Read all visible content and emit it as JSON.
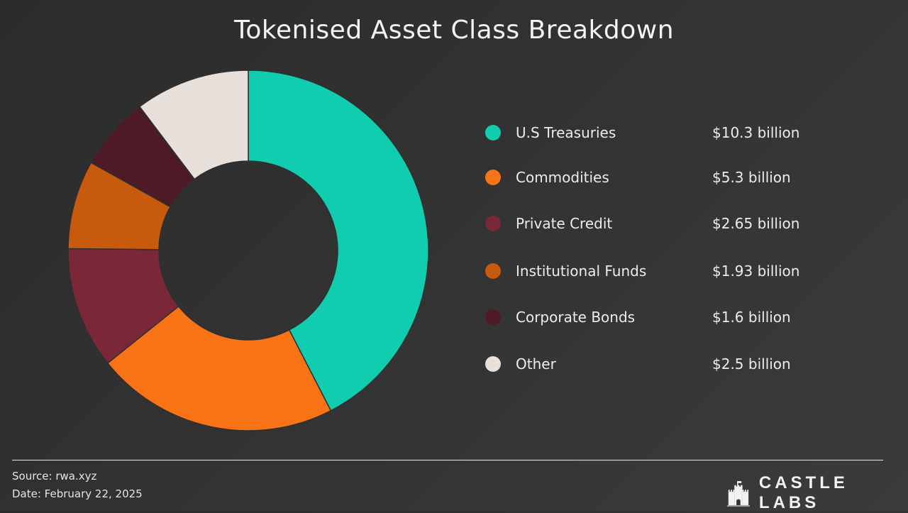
{
  "chart_data": {
    "type": "pie",
    "subtype": "donut",
    "title": "Tokenised Asset Class Breakdown",
    "unit": "billion USD",
    "legend_position": "right",
    "slices": [
      {
        "label": "U.S Treasuries",
        "value": 10.3,
        "value_label": "$10.3 billion",
        "color": "#11CDAF"
      },
      {
        "label": "Commodities",
        "value": 5.3,
        "value_label": "$5.3 billion",
        "color": "#F77316"
      },
      {
        "label": "Private Credit",
        "value": 2.65,
        "value_label": "$2.65 billion",
        "color": "#7A2838"
      },
      {
        "label": "Institutional Funds",
        "value": 1.93,
        "value_label": "$1.93 billion",
        "color": "#C85A0D"
      },
      {
        "label": "Corporate Bonds",
        "value": 1.6,
        "value_label": "$1.6 billion",
        "color": "#4E1A25"
      },
      {
        "label": "Other",
        "value": 2.5,
        "value_label": "$2.5 billion",
        "color": "#E8E0DA"
      }
    ]
  },
  "footer": {
    "source": "Source: rwa.xyz",
    "date": "Date: February 22, 2025",
    "brand": "CASTLE LABS"
  }
}
